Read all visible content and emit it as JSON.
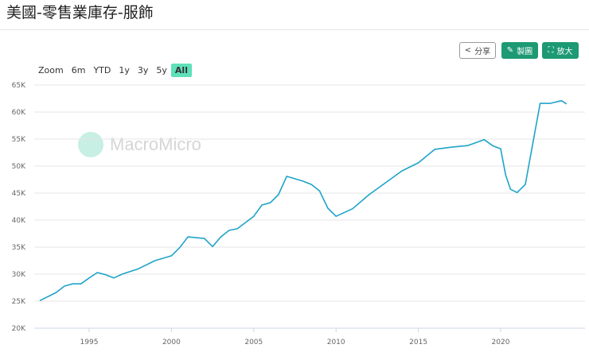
{
  "header": {
    "title": "美國-零售業庫存-服飾"
  },
  "buttons": {
    "share": "分享",
    "draw": "製圖",
    "zoom": "放大"
  },
  "range_selector": {
    "label": "Zoom",
    "options": [
      "6m",
      "YTD",
      "1y",
      "3y",
      "5y",
      "All"
    ],
    "active": "All"
  },
  "watermark": "MacroMicro",
  "colors": {
    "line": "#1fa3c9",
    "accent": "#1d9a73",
    "active_range": "#5ee0b8"
  },
  "chart_data": {
    "type": "line",
    "title": "",
    "xlabel": "",
    "ylabel": "",
    "ylim": [
      20000,
      65000
    ],
    "xlim": [
      1992,
      2024.2
    ],
    "grid": true,
    "yticks": [
      "20K",
      "25K",
      "30K",
      "35K",
      "40K",
      "45K",
      "50K",
      "55K",
      "60K",
      "65K"
    ],
    "xticks": [
      "1995",
      "2000",
      "2005",
      "2010",
      "2015",
      "2020"
    ],
    "x": [
      1992,
      1993,
      1993.5,
      1994,
      1994.5,
      1995,
      1995.5,
      1996,
      1996.5,
      1997,
      1998,
      1999,
      2000,
      2000.5,
      2001,
      2002,
      2002.5,
      2003,
      2003.5,
      2004,
      2005,
      2005.5,
      2006,
      2006.5,
      2007,
      2008,
      2008.5,
      2009,
      2009.5,
      2010,
      2011,
      2012,
      2013,
      2014,
      2015,
      2016,
      2017,
      2018,
      2019,
      2019.5,
      2020,
      2020.3,
      2020.6,
      2021,
      2021.5,
      2022,
      2022.4,
      2023,
      2023.7,
      2024
    ],
    "values": [
      25100,
      26600,
      27800,
      28200,
      28200,
      29300,
      30300,
      29900,
      29300,
      30000,
      31000,
      32500,
      33400,
      34900,
      36900,
      36600,
      35100,
      36900,
      38100,
      38400,
      40700,
      42800,
      43200,
      44700,
      48100,
      47200,
      46600,
      45400,
      42200,
      40700,
      42100,
      44700,
      46900,
      49100,
      50600,
      53100,
      53500,
      53800,
      54900,
      53800,
      53200,
      48400,
      45700,
      45100,
      46600,
      55000,
      61600,
      61600,
      62100,
      61500
    ]
  }
}
